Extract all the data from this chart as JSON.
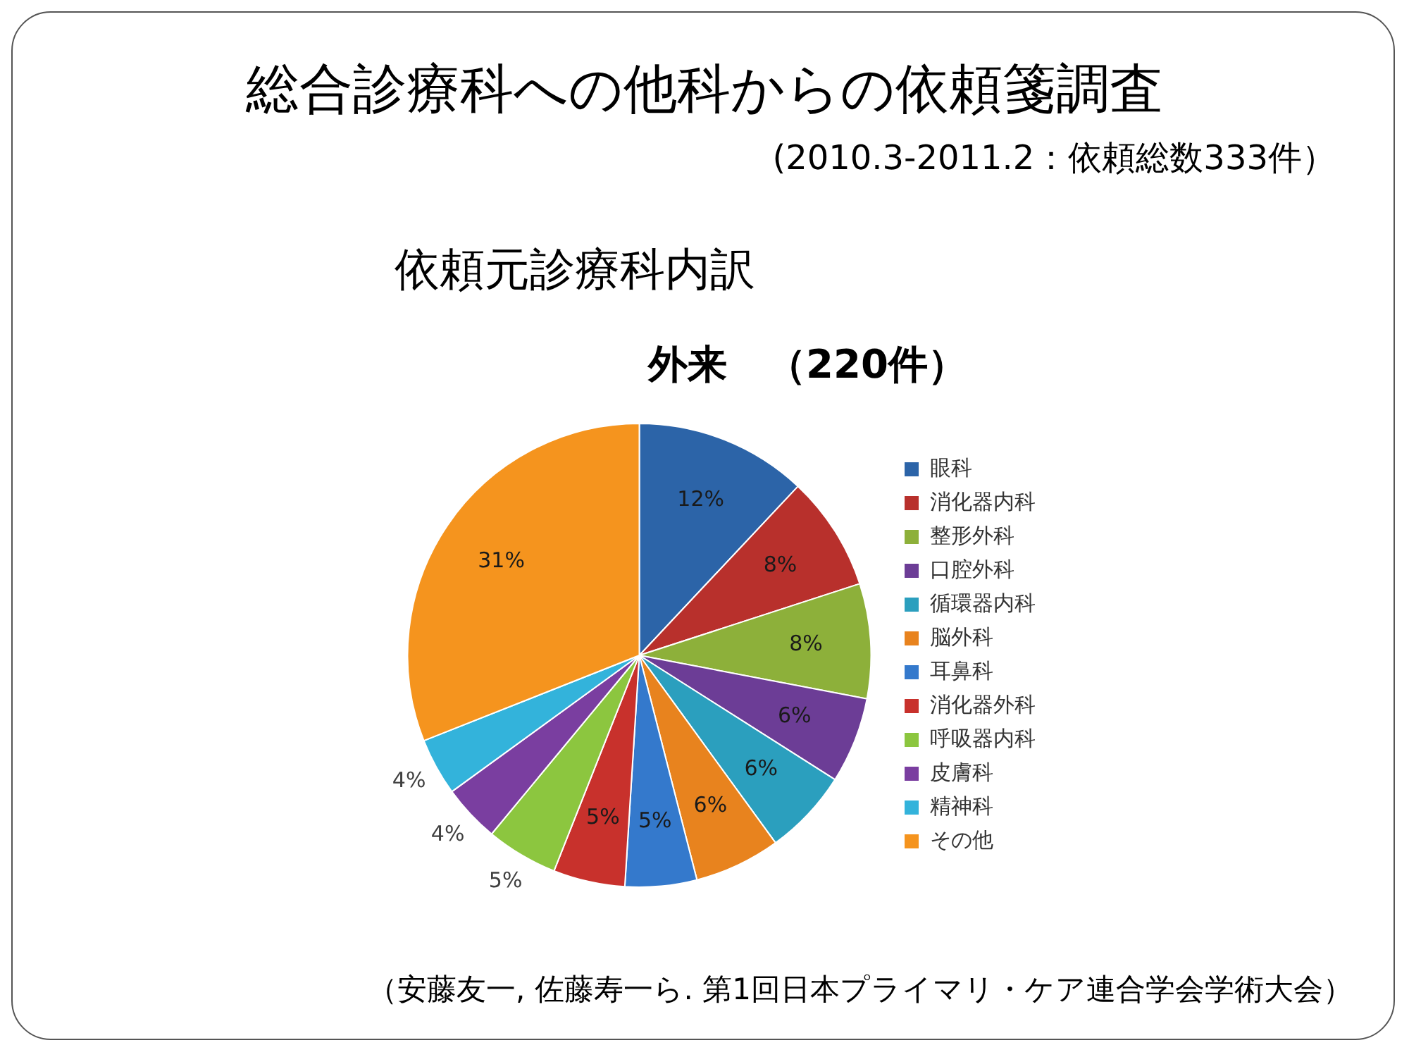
{
  "chart_data": {
    "type": "pie",
    "title": "総合診療科への他科からの依頼箋調査",
    "subtitle": "(2010.3-2011.2：依頼総数333件）",
    "annotations": [
      "依頼元診療科内訳",
      "外来　（220件）",
      "（安藤友一, 佐藤寿一ら. 第1回日本プライマリ・ケア連合学会学術大会）"
    ],
    "categories": [
      "眼科",
      "消化器内科",
      "整形外科",
      "口腔外科",
      "循環器内科",
      "脳外科",
      "耳鼻科",
      "消化器外科",
      "呼吸器内科",
      "皮膚科",
      "精神科",
      "その他"
    ],
    "values": [
      12,
      8,
      8,
      6,
      6,
      6,
      5,
      5,
      5,
      4,
      4,
      31
    ],
    "value_labels": [
      "12%",
      "8%",
      "8%",
      "6%",
      "6%",
      "6%",
      "5%",
      "5%",
      "5%",
      "4%",
      "4%",
      "31%"
    ],
    "colors": [
      "#2c64a8",
      "#b8302c",
      "#8db03a",
      "#6c3d96",
      "#2b9fbe",
      "#e8831e",
      "#3479cc",
      "#c8312c",
      "#8cc63f",
      "#7a3ea0",
      "#33b3db",
      "#f5941e"
    ],
    "legend": "right"
  }
}
